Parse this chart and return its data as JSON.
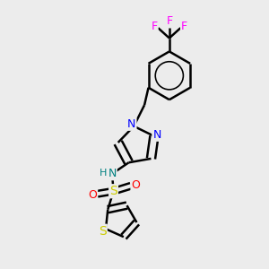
{
  "background_color": "#ececec",
  "bond_color": "#000000",
  "bond_width": 1.8,
  "dbo": 0.055,
  "atom_colors": {
    "N": "#0000ff",
    "N_teal": "#008080",
    "S": "#cccc00",
    "O": "#ff0000",
    "F": "#ff00ff",
    "C": "#000000"
  },
  "font_size": 9,
  "figsize": [
    3.0,
    3.0
  ],
  "dpi": 100
}
